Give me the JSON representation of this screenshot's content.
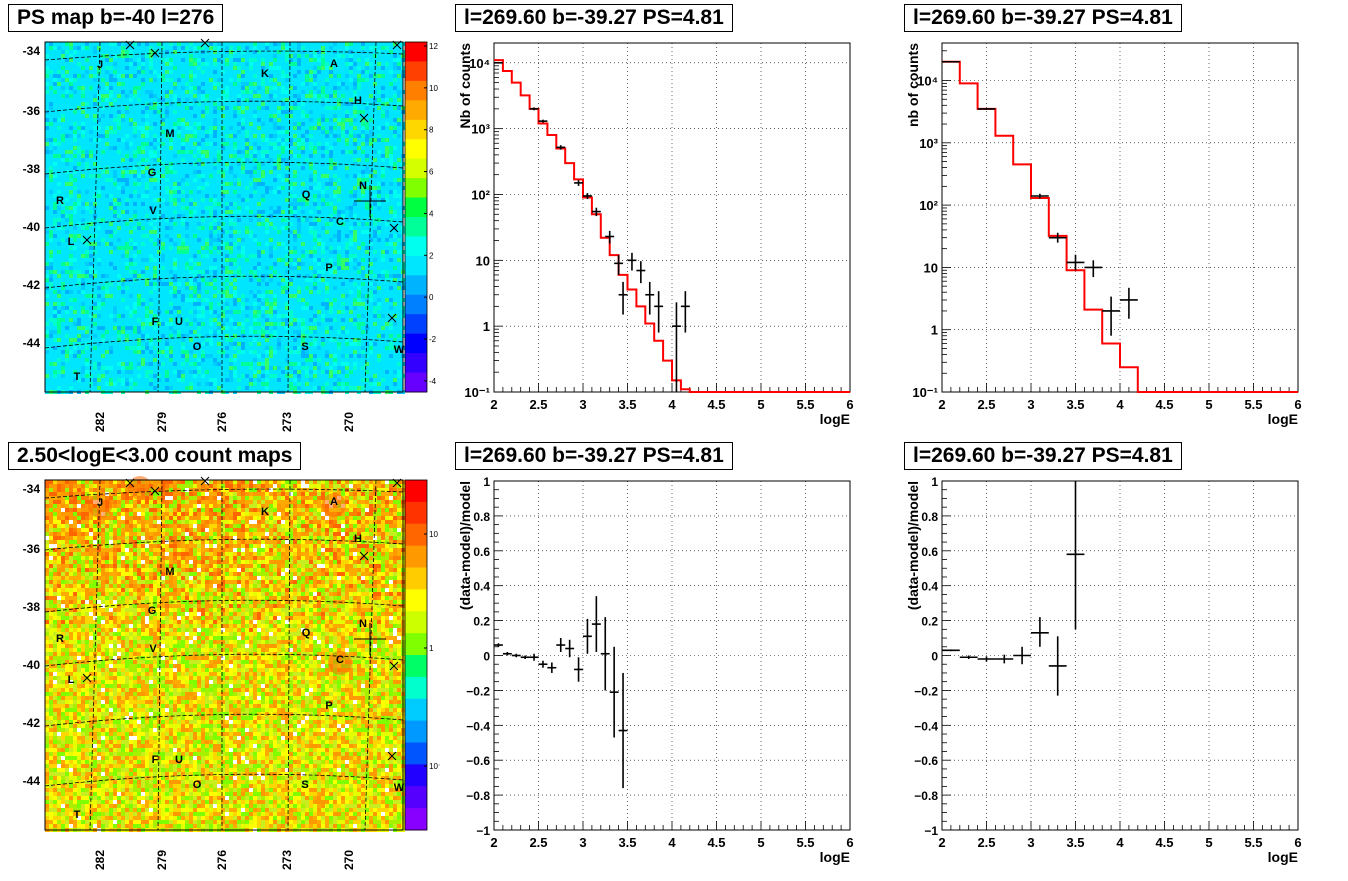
{
  "maps": [
    {
      "title": "PS map b=-40 l=276",
      "kind": "ps",
      "colorbar_ticks": [
        "12",
        "10",
        "8",
        "6",
        "4",
        "2",
        "0",
        "-2",
        "-4"
      ],
      "colorbar_colors": [
        "#ff0000",
        "#ff4000",
        "#ff8000",
        "#ffaa00",
        "#ffd700",
        "#ffff00",
        "#d4ff00",
        "#80ff00",
        "#00ff40",
        "#00ff99",
        "#00ffee",
        "#00e6ff",
        "#00b3ff",
        "#0080ff",
        "#0040ff",
        "#0000ff",
        "#3300ff",
        "#6600ff"
      ],
      "base_color": "#00e6ff"
    },
    {
      "title": "2.50<logE<3.00 count maps",
      "kind": "counts",
      "colorbar_ticks": [
        "10",
        "1",
        "10⁻¹"
      ],
      "colorbar_colors": [
        "#ff0000",
        "#ff3300",
        "#ff6600",
        "#ff9900",
        "#ffcc00",
        "#ffff00",
        "#ccff00",
        "#80ff00",
        "#00ff66",
        "#00ffcc",
        "#00ccff",
        "#0099ff",
        "#0055ff",
        "#2200ff",
        "#5500ff",
        "#8800ff"
      ],
      "base_color": "#c8ee20"
    }
  ],
  "map_axes": {
    "y_ticks": [
      "-34",
      "-36",
      "-38",
      "-40",
      "-42",
      "-44"
    ],
    "x_ticks": [
      "282",
      "279",
      "276",
      "273",
      "270"
    ]
  },
  "sources": [
    {
      "label": "J"
    },
    {
      "label": "K"
    },
    {
      "label": "A"
    },
    {
      "label": "H"
    },
    {
      "label": "M"
    },
    {
      "label": "G"
    },
    {
      "label": "N"
    },
    {
      "label": "Q"
    },
    {
      "label": "R"
    },
    {
      "label": "V"
    },
    {
      "label": "C"
    },
    {
      "label": "L"
    },
    {
      "label": "P"
    },
    {
      "label": "F"
    },
    {
      "label": "U"
    },
    {
      "label": "O"
    },
    {
      "label": "S"
    },
    {
      "label": "W"
    },
    {
      "label": "T"
    }
  ],
  "spectra": [
    {
      "title": "l=269.60 b=-39.27 PS=4.81",
      "chart_data": {
        "type": "line",
        "xlabel": "logE",
        "ylabel": "Nb of counts",
        "xlim": [
          2,
          6
        ],
        "ylim": [
          0.1,
          20000
        ],
        "log_y": true,
        "x_ticks": [
          "2",
          "2.5",
          "3",
          "3.5",
          "4",
          "4.5",
          "5",
          "5.5",
          "6"
        ],
        "y_ticks": [
          "10⁻¹",
          "1",
          "10",
          "10²",
          "10³",
          "10⁴"
        ],
        "model_color": "#ff0000",
        "model_step": {
          "edges": [
            2.0,
            2.1,
            2.2,
            2.3,
            2.4,
            2.5,
            2.6,
            2.7,
            2.8,
            2.9,
            3.0,
            3.1,
            3.2,
            3.3,
            3.4,
            3.5,
            3.6,
            3.7,
            3.8,
            3.9,
            4.0,
            4.1,
            4.2,
            6.0
          ],
          "values": [
            11000,
            7500,
            5000,
            3200,
            2000,
            1200,
            800,
            500,
            300,
            170,
            90,
            50,
            22,
            12,
            6,
            3.6,
            2.0,
            1.1,
            0.6,
            0.3,
            0.15,
            0.11,
            0.1
          ]
        },
        "points": [
          {
            "x": 2.05,
            "y": 10000,
            "ylo": 9800,
            "yhi": 10200,
            "xerr": 0.05
          },
          {
            "x": 2.45,
            "y": 2000,
            "ylo": 1900,
            "yhi": 2100,
            "xerr": 0.05
          },
          {
            "x": 2.55,
            "y": 1300,
            "ylo": 1230,
            "yhi": 1370,
            "xerr": 0.05
          },
          {
            "x": 2.75,
            "y": 520,
            "ylo": 480,
            "yhi": 560,
            "xerr": 0.05
          },
          {
            "x": 2.95,
            "y": 150,
            "ylo": 135,
            "yhi": 165,
            "xerr": 0.05
          },
          {
            "x": 3.05,
            "y": 95,
            "ylo": 85,
            "yhi": 105,
            "xerr": 0.05
          },
          {
            "x": 3.15,
            "y": 55,
            "ylo": 47,
            "yhi": 63,
            "xerr": 0.05
          },
          {
            "x": 3.3,
            "y": 23,
            "ylo": 18,
            "yhi": 28,
            "xerr": 0.05
          },
          {
            "x": 3.4,
            "y": 9,
            "ylo": 6,
            "yhi": 12,
            "xerr": 0.05
          },
          {
            "x": 3.45,
            "y": 3,
            "ylo": 1.5,
            "yhi": 4.7,
            "xerr": 0.05
          },
          {
            "x": 3.55,
            "y": 10,
            "ylo": 7,
            "yhi": 13,
            "xerr": 0.05
          },
          {
            "x": 3.65,
            "y": 7,
            "ylo": 4.5,
            "yhi": 9.7,
            "xerr": 0.05
          },
          {
            "x": 3.75,
            "y": 3,
            "ylo": 1.5,
            "yhi": 4.7,
            "xerr": 0.05
          },
          {
            "x": 3.85,
            "y": 2,
            "ylo": 0.8,
            "yhi": 3.4,
            "xerr": 0.05
          },
          {
            "x": 4.05,
            "y": 1,
            "ylo": 0.1,
            "yhi": 2.3,
            "xerr": 0.05
          },
          {
            "x": 4.15,
            "y": 2,
            "ylo": 0.8,
            "yhi": 3.4,
            "xerr": 0.05
          }
        ]
      }
    },
    {
      "title": "l=269.60 b=-39.27 PS=4.81",
      "chart_data": {
        "type": "line",
        "xlabel": "logE",
        "ylabel": "nb of counts",
        "xlim": [
          2,
          6
        ],
        "ylim": [
          0.1,
          40000
        ],
        "log_y": true,
        "x_ticks": [
          "2",
          "2.5",
          "3",
          "3.5",
          "4",
          "4.5",
          "5",
          "5.5",
          "6"
        ],
        "y_ticks": [
          "10⁻¹",
          "1",
          "10",
          "10²",
          "10³",
          "10⁴"
        ],
        "model_color": "#ff0000",
        "model_step": {
          "edges": [
            2.0,
            2.2,
            2.4,
            2.6,
            2.8,
            3.0,
            3.2,
            3.4,
            3.6,
            3.8,
            4.0,
            4.2,
            6.0
          ],
          "values": [
            20000,
            9000,
            3500,
            1300,
            450,
            130,
            32,
            9,
            2.1,
            0.6,
            0.25,
            0.1
          ]
        },
        "points": [
          {
            "x": 2.1,
            "y": 20000,
            "ylo": 19500,
            "yhi": 20500,
            "xerr": 0.1
          },
          {
            "x": 2.5,
            "y": 3500,
            "ylo": 3400,
            "yhi": 3600,
            "xerr": 0.1
          },
          {
            "x": 3.1,
            "y": 140,
            "ylo": 128,
            "yhi": 152,
            "xerr": 0.1
          },
          {
            "x": 3.3,
            "y": 30,
            "ylo": 25,
            "yhi": 36,
            "xerr": 0.1
          },
          {
            "x": 3.5,
            "y": 12,
            "ylo": 9,
            "yhi": 16,
            "xerr": 0.1
          },
          {
            "x": 3.7,
            "y": 10,
            "ylo": 7,
            "yhi": 13,
            "xerr": 0.1
          },
          {
            "x": 3.9,
            "y": 2,
            "ylo": 0.8,
            "yhi": 3.4,
            "xerr": 0.1
          },
          {
            "x": 4.1,
            "y": 3,
            "ylo": 1.5,
            "yhi": 4.7,
            "xerr": 0.1
          }
        ]
      }
    }
  ],
  "residuals": [
    {
      "title": "l=269.60 b=-39.27 PS=4.81",
      "chart_data": {
        "type": "scatter",
        "xlabel": "logE",
        "ylabel": "(data-model)/model",
        "xlim": [
          2,
          6
        ],
        "ylim": [
          -1,
          1
        ],
        "x_ticks": [
          "2",
          "2.5",
          "3",
          "3.5",
          "4",
          "4.5",
          "5",
          "5.5",
          "6"
        ],
        "y_ticks": [
          "−1",
          "−0.8",
          "−0.6",
          "−0.4",
          "−0.2",
          "0",
          "0.2",
          "0.4",
          "0.6",
          "0.8",
          "1"
        ],
        "points": [
          {
            "x": 2.05,
            "y": 0.06,
            "ylo": 0.05,
            "yhi": 0.07,
            "xerr": 0.05
          },
          {
            "x": 2.15,
            "y": 0.01,
            "ylo": 0.0,
            "yhi": 0.02,
            "xerr": 0.05
          },
          {
            "x": 2.25,
            "y": 0.0,
            "ylo": -0.01,
            "yhi": 0.01,
            "xerr": 0.05
          },
          {
            "x": 2.35,
            "y": -0.01,
            "ylo": -0.02,
            "yhi": 0.0,
            "xerr": 0.05
          },
          {
            "x": 2.45,
            "y": -0.01,
            "ylo": -0.03,
            "yhi": 0.01,
            "xerr": 0.05
          },
          {
            "x": 2.55,
            "y": -0.05,
            "ylo": -0.07,
            "yhi": -0.03,
            "xerr": 0.05
          },
          {
            "x": 2.65,
            "y": -0.07,
            "ylo": -0.1,
            "yhi": -0.04,
            "xerr": 0.05
          },
          {
            "x": 2.75,
            "y": 0.06,
            "ylo": 0.02,
            "yhi": 0.1,
            "xerr": 0.05
          },
          {
            "x": 2.85,
            "y": 0.04,
            "ylo": -0.01,
            "yhi": 0.09,
            "xerr": 0.05
          },
          {
            "x": 2.95,
            "y": -0.08,
            "ylo": -0.15,
            "yhi": -0.01,
            "xerr": 0.05
          },
          {
            "x": 3.05,
            "y": 0.11,
            "ylo": 0.01,
            "yhi": 0.21,
            "xerr": 0.05
          },
          {
            "x": 3.15,
            "y": 0.18,
            "ylo": 0.02,
            "yhi": 0.34,
            "xerr": 0.05
          },
          {
            "x": 3.25,
            "y": 0.01,
            "ylo": -0.2,
            "yhi": 0.22,
            "xerr": 0.05
          },
          {
            "x": 3.35,
            "y": -0.21,
            "ylo": -0.47,
            "yhi": 0.05,
            "xerr": 0.05
          },
          {
            "x": 3.45,
            "y": -0.43,
            "ylo": -0.76,
            "yhi": -0.1,
            "xerr": 0.05
          }
        ]
      }
    },
    {
      "title": "l=269.60 b=-39.27 PS=4.81",
      "chart_data": {
        "type": "scatter",
        "xlabel": "logE",
        "ylabel": "(data-model)/model",
        "xlim": [
          2,
          6
        ],
        "ylim": [
          -1,
          1
        ],
        "x_ticks": [
          "2",
          "2.5",
          "3",
          "3.5",
          "4",
          "4.5",
          "5",
          "5.5",
          "6"
        ],
        "y_ticks": [
          "−1",
          "−0.8",
          "−0.6",
          "−0.4",
          "−0.2",
          "0",
          "0.2",
          "0.4",
          "0.6",
          "0.8",
          "1"
        ],
        "points": [
          {
            "x": 2.1,
            "y": 0.03,
            "ylo": 0.025,
            "yhi": 0.035,
            "xerr": 0.1
          },
          {
            "x": 2.3,
            "y": -0.01,
            "ylo": -0.02,
            "yhi": 0.0,
            "xerr": 0.1
          },
          {
            "x": 2.5,
            "y": -0.02,
            "ylo": -0.035,
            "yhi": -0.005,
            "xerr": 0.1
          },
          {
            "x": 2.7,
            "y": -0.02,
            "ylo": -0.045,
            "yhi": 0.005,
            "xerr": 0.1
          },
          {
            "x": 2.9,
            "y": 0.0,
            "ylo": -0.05,
            "yhi": 0.05,
            "xerr": 0.1
          },
          {
            "x": 3.1,
            "y": 0.13,
            "ylo": 0.05,
            "yhi": 0.22,
            "xerr": 0.1
          },
          {
            "x": 3.3,
            "y": -0.06,
            "ylo": -0.23,
            "yhi": 0.11,
            "xerr": 0.1
          },
          {
            "x": 3.5,
            "y": 0.58,
            "ylo": 0.15,
            "yhi": 1.0,
            "xerr": 0.1
          }
        ]
      }
    }
  ]
}
